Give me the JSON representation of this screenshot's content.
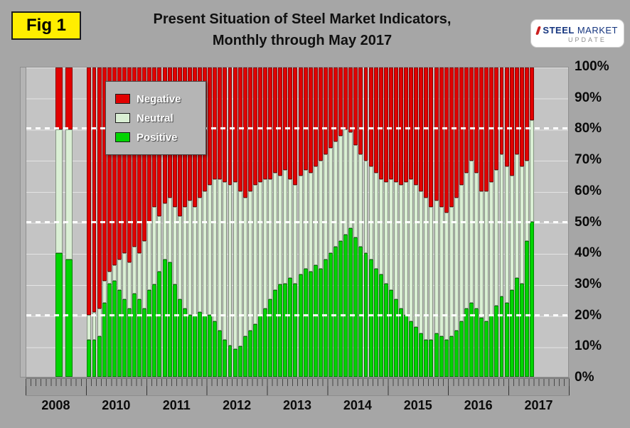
{
  "figure_label": "Fig 1",
  "header": {
    "title_line1": "Present Situation of Steel Market Indicators,",
    "title_line2": "Monthly through May 2017"
  },
  "logo": {
    "steel": "STEEL",
    "market": "MARKET",
    "update": "UPDATE"
  },
  "chart_data": {
    "type": "bar",
    "subtype": "stacked-100-percent-monthly",
    "title": "Present Situation of Steel Market Indicators, Monthly through May 2017",
    "stack_order_bottom_to_top": [
      "positive",
      "neutral",
      "negative"
    ],
    "unit": "percent",
    "colors": {
      "negative": "#e10000",
      "neutral": "#daefd4",
      "positive": "#00d400",
      "plot_background": "#c4c4c4",
      "page_background": "#a6a6a6"
    },
    "legend": [
      {
        "label": "Negative",
        "color": "#e10000"
      },
      {
        "label": "Neutral",
        "color": "#daefd4"
      },
      {
        "label": "Positive",
        "color": "#00d400"
      }
    ],
    "y_axis": {
      "range": [
        0,
        100
      ],
      "ticks": [
        "100%",
        "90%",
        "80%",
        "70%",
        "60%",
        "50%",
        "40%",
        "30%",
        "20%",
        "10%",
        "0%"
      ]
    },
    "reference_lines_pct": [
      20,
      50,
      80
    ],
    "months_are": "Jan..Dec arrays of [positive_pct, neutral_pct, negative_pct]; null = no survey that month (values estimated from chart)",
    "years": [
      {
        "label": "2008",
        "months": [
          null,
          null,
          null,
          null,
          null,
          null,
          [
            40,
            40,
            20
          ],
          null,
          [
            38,
            42,
            20
          ],
          null,
          null,
          null
        ]
      },
      {
        "label": "2010",
        "months": [
          [
            12,
            8,
            80
          ],
          [
            12,
            9,
            79
          ],
          [
            13,
            9,
            78
          ],
          [
            24,
            7,
            69
          ],
          [
            30,
            4,
            66
          ],
          [
            31,
            5,
            64
          ],
          [
            28,
            10,
            62
          ],
          [
            25,
            15,
            60
          ],
          [
            22,
            15,
            63
          ],
          [
            27,
            15,
            58
          ],
          [
            25,
            15,
            60
          ],
          [
            22,
            22,
            56
          ]
        ]
      },
      {
        "label": "2011",
        "months": [
          [
            28,
            22,
            50
          ],
          [
            30,
            25,
            45
          ],
          [
            34,
            18,
            48
          ],
          [
            38,
            18,
            44
          ],
          [
            37,
            21,
            42
          ],
          [
            30,
            25,
            45
          ],
          [
            25,
            27,
            48
          ],
          [
            22,
            33,
            45
          ],
          [
            20,
            37,
            43
          ],
          [
            20,
            35,
            45
          ],
          [
            21,
            37,
            42
          ],
          [
            20,
            40,
            40
          ]
        ]
      },
      {
        "label": "2012",
        "months": [
          [
            20,
            42,
            38
          ],
          [
            18,
            46,
            36
          ],
          [
            15,
            49,
            36
          ],
          [
            12,
            51,
            37
          ],
          [
            10,
            52,
            38
          ],
          [
            9,
            54,
            37
          ],
          [
            10,
            50,
            40
          ],
          [
            13,
            45,
            42
          ],
          [
            15,
            45,
            40
          ],
          [
            17,
            45,
            38
          ],
          [
            20,
            43,
            37
          ],
          [
            22,
            42,
            36
          ]
        ]
      },
      {
        "label": "2013",
        "months": [
          [
            25,
            39,
            36
          ],
          [
            28,
            38,
            34
          ],
          [
            30,
            35,
            35
          ],
          [
            30,
            37,
            33
          ],
          [
            32,
            32,
            36
          ],
          [
            30,
            32,
            38
          ],
          [
            33,
            32,
            35
          ],
          [
            35,
            32,
            33
          ],
          [
            34,
            32,
            34
          ],
          [
            36,
            32,
            32
          ],
          [
            35,
            35,
            30
          ],
          [
            38,
            34,
            28
          ]
        ]
      },
      {
        "label": "2014",
        "months": [
          [
            40,
            34,
            26
          ],
          [
            42,
            34,
            24
          ],
          [
            44,
            34,
            22
          ],
          [
            46,
            34,
            20
          ],
          [
            48,
            31,
            21
          ],
          [
            45,
            30,
            25
          ],
          [
            42,
            30,
            28
          ],
          [
            40,
            30,
            30
          ],
          [
            38,
            30,
            32
          ],
          [
            35,
            31,
            34
          ],
          [
            33,
            31,
            36
          ],
          [
            30,
            33,
            37
          ]
        ]
      },
      {
        "label": "2015",
        "months": [
          [
            28,
            36,
            36
          ],
          [
            25,
            38,
            37
          ],
          [
            22,
            40,
            38
          ],
          [
            20,
            43,
            37
          ],
          [
            18,
            46,
            36
          ],
          [
            16,
            46,
            38
          ],
          [
            14,
            46,
            40
          ],
          [
            12,
            46,
            42
          ],
          [
            12,
            43,
            45
          ],
          [
            14,
            43,
            43
          ],
          [
            13,
            42,
            45
          ],
          [
            12,
            41,
            47
          ]
        ]
      },
      {
        "label": "2016",
        "months": [
          [
            13,
            42,
            45
          ],
          [
            15,
            43,
            42
          ],
          [
            18,
            44,
            38
          ],
          [
            22,
            44,
            34
          ],
          [
            24,
            46,
            30
          ],
          [
            22,
            44,
            34
          ],
          [
            19,
            41,
            40
          ],
          [
            18,
            42,
            40
          ],
          [
            20,
            43,
            37
          ],
          [
            23,
            44,
            33
          ],
          [
            26,
            46,
            28
          ],
          [
            24,
            44,
            32
          ]
        ]
      },
      {
        "label": "2017",
        "months": [
          [
            28,
            37,
            35
          ],
          [
            32,
            40,
            28
          ],
          [
            30,
            38,
            32
          ],
          [
            44,
            26,
            30
          ],
          [
            50,
            33,
            17
          ],
          null,
          null,
          null,
          null,
          null,
          null,
          null
        ]
      }
    ]
  }
}
